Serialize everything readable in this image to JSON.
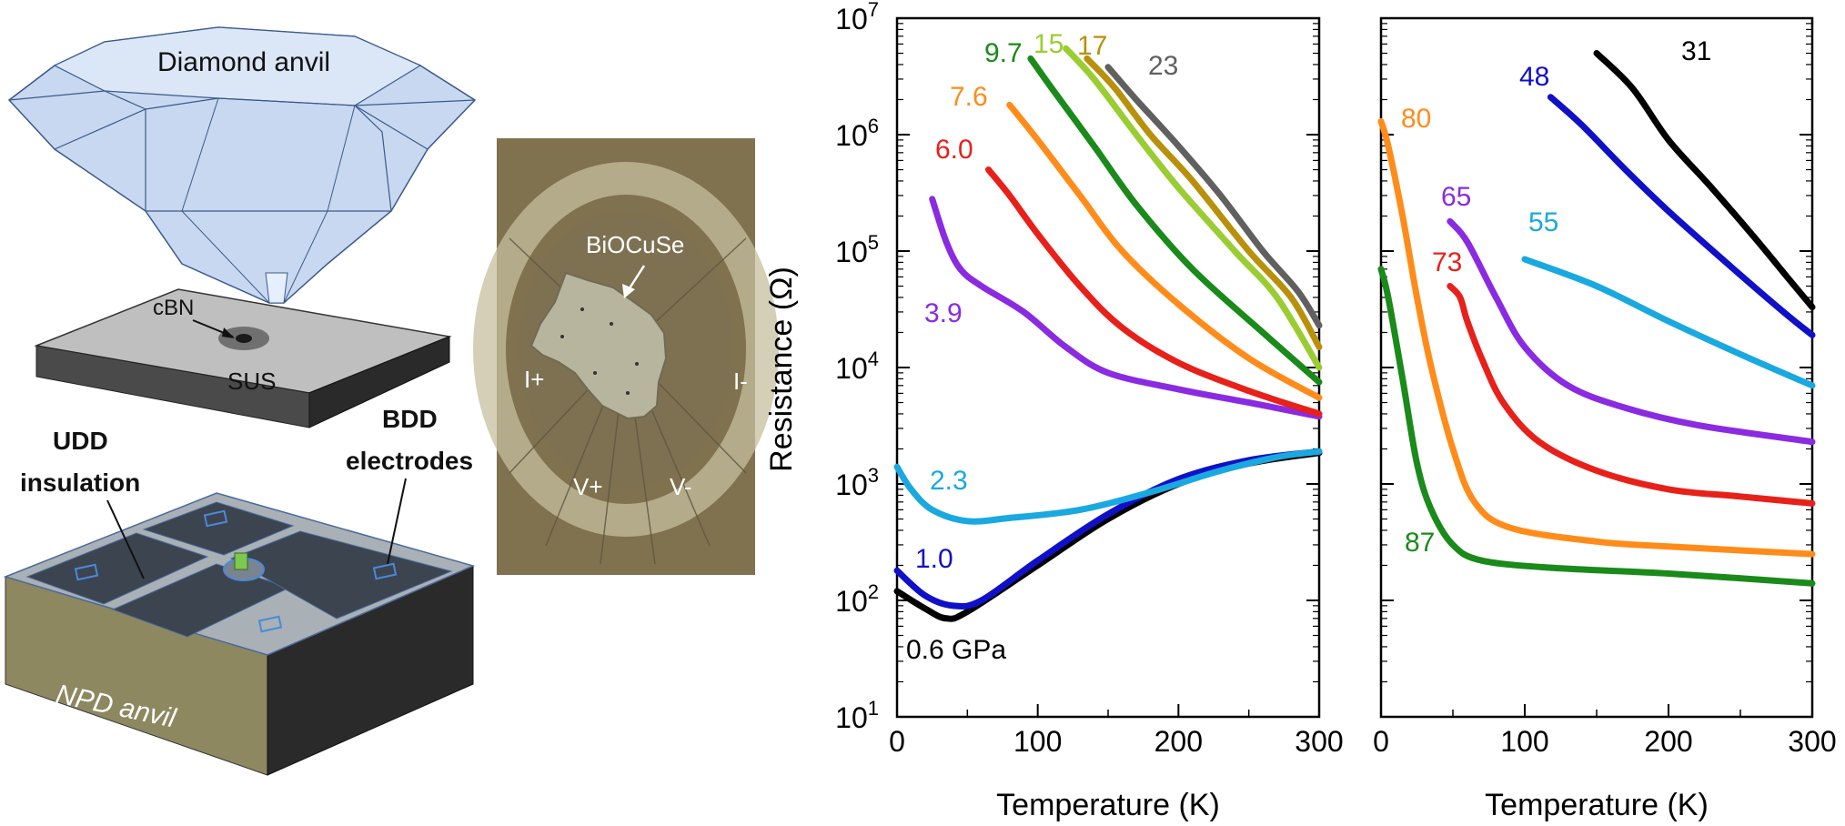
{
  "schematic": {
    "diamond_label": "Diamond anvil",
    "cbn_label": "cBN",
    "sus_label": "SUS",
    "udd_label_line1": "UDD",
    "udd_label_line2": "insulation",
    "bdd_label_line1": "BDD",
    "bdd_label_line2": "electrodes",
    "npd_label": "NPD anvil"
  },
  "photo": {
    "sample_label": "BiOCuSe",
    "i_plus": "I+",
    "i_minus": "I-",
    "v_plus": "V+",
    "v_minus": "V-"
  },
  "chart_data": [
    {
      "type": "line",
      "ylabel": "Resistance (Ω)",
      "xlabel": "Temperature (K)",
      "xlim": [
        0,
        300
      ],
      "ylim": [
        10,
        10000000
      ],
      "y_scale": "log",
      "x_ticks": [
        "0",
        "100",
        "200",
        "300"
      ],
      "y_tick_mantissa": "10",
      "y_tick_exponents": [
        "1",
        "2",
        "3",
        "4",
        "5",
        "6",
        "7"
      ],
      "series": [
        {
          "name": "0.6 GPa",
          "color": "#000000",
          "points": [
            [
              0,
              120
            ],
            [
              20,
              85
            ],
            [
              35,
              70
            ],
            [
              50,
              80
            ],
            [
              100,
              200
            ],
            [
              150,
              500
            ],
            [
              200,
              1000
            ],
            [
              250,
              1500
            ],
            [
              300,
              1850
            ]
          ]
        },
        {
          "name": "1.0",
          "color": "#1010c8",
          "points": [
            [
              0,
              180
            ],
            [
              20,
              110
            ],
            [
              40,
              90
            ],
            [
              60,
              100
            ],
            [
              100,
              220
            ],
            [
              150,
              550
            ],
            [
              200,
              1100
            ],
            [
              250,
              1600
            ],
            [
              300,
              1900
            ]
          ]
        },
        {
          "name": "2.3",
          "color": "#1aa8e0",
          "points": [
            [
              0,
              1400
            ],
            [
              10,
              900
            ],
            [
              25,
              600
            ],
            [
              50,
              480
            ],
            [
              80,
              510
            ],
            [
              130,
              600
            ],
            [
              180,
              850
            ],
            [
              230,
              1300
            ],
            [
              270,
              1700
            ],
            [
              300,
              1900
            ]
          ]
        },
        {
          "name": "3.9",
          "color": "#8a2be2",
          "points": [
            [
              25,
              280000
            ],
            [
              35,
              120000
            ],
            [
              45,
              70000
            ],
            [
              60,
              50000
            ],
            [
              90,
              30000
            ],
            [
              120,
              15000
            ],
            [
              150,
              9000
            ],
            [
              200,
              6500
            ],
            [
              250,
              5000
            ],
            [
              300,
              3800
            ]
          ]
        },
        {
          "name": "6.0",
          "color": "#e8201a",
          "points": [
            [
              65,
              500000
            ],
            [
              80,
              300000
            ],
            [
              100,
              140000
            ],
            [
              130,
              50000
            ],
            [
              160,
              22000
            ],
            [
              200,
              11000
            ],
            [
              250,
              6300
            ],
            [
              300,
              4000
            ]
          ]
        },
        {
          "name": "7.6",
          "color": "#ff8c1a",
          "points": [
            [
              80,
              1800000
            ],
            [
              100,
              900000
            ],
            [
              130,
              300000
            ],
            [
              160,
              100000
            ],
            [
              200,
              35000
            ],
            [
              250,
              12000
            ],
            [
              300,
              5500
            ]
          ]
        },
        {
          "name": "9.7",
          "color": "#1a8a1a",
          "points": [
            [
              95,
              4500000
            ],
            [
              110,
              2500000
            ],
            [
              140,
              800000
            ],
            [
              170,
              250000
            ],
            [
              210,
              70000
            ],
            [
              260,
              20000
            ],
            [
              300,
              7500
            ]
          ]
        },
        {
          "name": "15",
          "color": "#9acd32",
          "points": [
            [
              120,
              5500000
            ],
            [
              140,
              3000000
            ],
            [
              170,
              1000000
            ],
            [
              200,
              350000
            ],
            [
              240,
              100000
            ],
            [
              270,
              40000
            ],
            [
              300,
              10000
            ]
          ]
        },
        {
          "name": "17",
          "color": "#b8900a",
          "points": [
            [
              135,
              4500000
            ],
            [
              155,
              2500000
            ],
            [
              180,
              1000000
            ],
            [
              210,
              400000
            ],
            [
              250,
              100000
            ],
            [
              280,
              40000
            ],
            [
              300,
              15000
            ]
          ]
        },
        {
          "name": "23",
          "color": "#606060",
          "points": [
            [
              150,
              3800000
            ],
            [
              170,
              2000000
            ],
            [
              200,
              800000
            ],
            [
              230,
              300000
            ],
            [
              260,
              100000
            ],
            [
              285,
              45000
            ],
            [
              300,
              23000
            ]
          ]
        }
      ]
    },
    {
      "type": "line",
      "xlabel": "Temperature (K)",
      "xlim": [
        0,
        300
      ],
      "ylim": [
        10,
        10000000
      ],
      "y_scale": "log",
      "x_ticks": [
        "0",
        "100",
        "200",
        "300"
      ],
      "series": [
        {
          "name": "31",
          "color": "#000000",
          "points": [
            [
              150,
              5000000
            ],
            [
              175,
              2500000
            ],
            [
              200,
              900000
            ],
            [
              230,
              350000
            ],
            [
              260,
              130000
            ],
            [
              285,
              55000
            ],
            [
              300,
              33000
            ]
          ]
        },
        {
          "name": "48",
          "color": "#1010c8",
          "points": [
            [
              118,
              2100000
            ],
            [
              140,
              1200000
            ],
            [
              170,
              500000
            ],
            [
              200,
              220000
            ],
            [
              240,
              80000
            ],
            [
              280,
              30000
            ],
            [
              300,
              19000
            ]
          ]
        },
        {
          "name": "55",
          "color": "#1aa8e0",
          "points": [
            [
              100,
              85000
            ],
            [
              150,
              50000
            ],
            [
              200,
              25000
            ],
            [
              250,
              13000
            ],
            [
              300,
              7000
            ]
          ]
        },
        {
          "name": "65",
          "color": "#8a2be2",
          "points": [
            [
              48,
              180000
            ],
            [
              60,
              120000
            ],
            [
              80,
              40000
            ],
            [
              100,
              15000
            ],
            [
              130,
              7000
            ],
            [
              170,
              4500
            ],
            [
              220,
              3200
            ],
            [
              300,
              2300
            ]
          ]
        },
        {
          "name": "73",
          "color": "#e8201a",
          "points": [
            [
              48,
              50000
            ],
            [
              55,
              40000
            ],
            [
              60,
              25000
            ],
            [
              70,
              12000
            ],
            [
              85,
              5000
            ],
            [
              110,
              2300
            ],
            [
              150,
              1300
            ],
            [
              200,
              900
            ],
            [
              250,
              780
            ],
            [
              300,
              680
            ]
          ]
        },
        {
          "name": "80",
          "color": "#ff8c1a",
          "points": [
            [
              0,
              1300000
            ],
            [
              5,
              800000
            ],
            [
              15,
              200000
            ],
            [
              25,
              40000
            ],
            [
              35,
              10000
            ],
            [
              50,
              2000
            ],
            [
              65,
              700
            ],
            [
              90,
              420
            ],
            [
              150,
              320
            ],
            [
              200,
              290
            ],
            [
              300,
              250
            ]
          ]
        },
        {
          "name": "87",
          "color": "#1a8a1a",
          "points": [
            [
              0,
              70000
            ],
            [
              5,
              40000
            ],
            [
              15,
              8000
            ],
            [
              25,
              1500
            ],
            [
              35,
              600
            ],
            [
              50,
              300
            ],
            [
              70,
              220
            ],
            [
              120,
              190
            ],
            [
              200,
              170
            ],
            [
              300,
              140
            ]
          ]
        }
      ]
    }
  ]
}
